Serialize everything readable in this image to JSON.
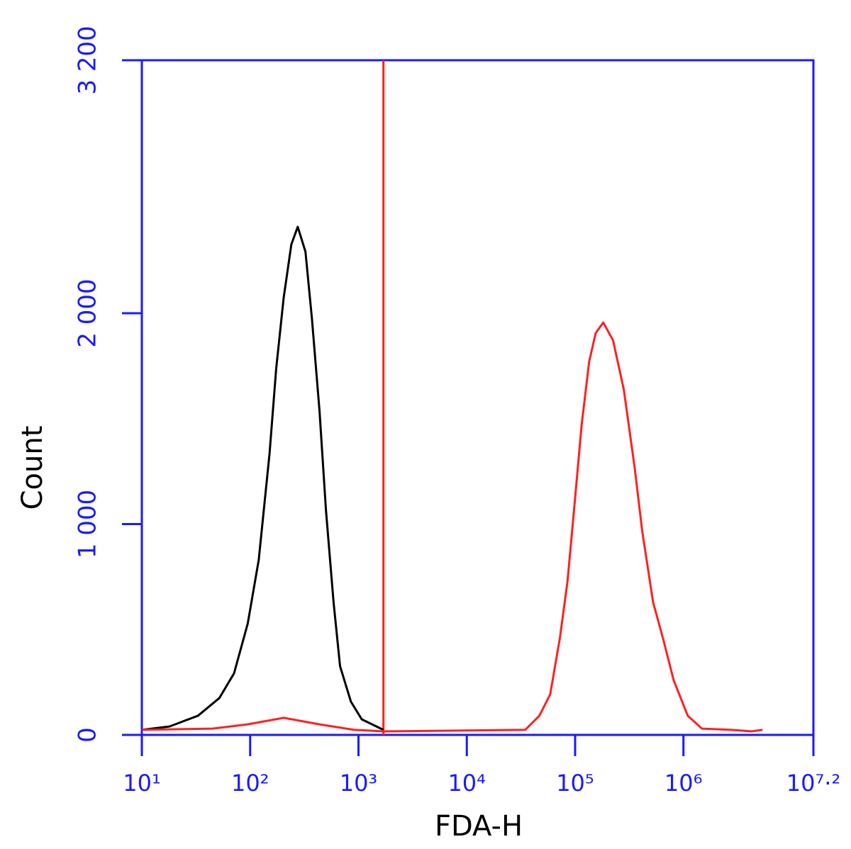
{
  "chart_data": {
    "type": "line",
    "x_scale": "log",
    "xlabel": "FDA-H",
    "ylabel": "Count",
    "xlim": [
      10,
      15848931.92
    ],
    "ylim": [
      0,
      3200
    ],
    "xticks": [
      {
        "value": 10,
        "label": "10¹"
      },
      {
        "value": 100,
        "label": "10²"
      },
      {
        "value": 1000,
        "label": "10³"
      },
      {
        "value": 10000,
        "label": "10⁴"
      },
      {
        "value": 100000,
        "label": "10⁵"
      },
      {
        "value": 1000000,
        "label": "10⁶"
      },
      {
        "value": 15848931.92,
        "label": "10⁷·²"
      }
    ],
    "yticks": [
      0,
      {
        "value": 1000,
        "label": "1 000"
      },
      {
        "value": 2000,
        "label": "2 000"
      },
      {
        "value": 3200,
        "label": "3 200"
      }
    ],
    "axis_color": "#1a1aff",
    "vline": {
      "value": 1700,
      "color": "#ff2020"
    },
    "series": [
      {
        "color": "#000000",
        "x": [
          10,
          18,
          33,
          52,
          71,
          95,
          120,
          151,
          174,
          204,
          240,
          275,
          324,
          372,
          437,
          501,
          589,
          676,
          851,
          1072,
          1700
        ],
        "values": [
          24,
          40,
          91,
          175,
          292,
          528,
          830,
          1334,
          1738,
          2074,
          2326,
          2410,
          2292,
          1973,
          1536,
          1066,
          629,
          326,
          158,
          74,
          24
        ]
      },
      {
        "color": "#ff2020",
        "x": [
          10,
          45,
          95,
          204,
          437,
          912,
          1700,
          34674,
          46774,
          58884,
          72444,
          85114,
          97724,
          114815,
          134896,
          154882,
          181970,
          223872,
          281838,
          354813,
          416869,
          524807,
          645654,
          812831,
          1096478,
          1479108,
          2754229,
          4265795,
          5370318
        ],
        "values": [
          24,
          30,
          50,
          81,
          50,
          24,
          17,
          24,
          91,
          192,
          461,
          729,
          1066,
          1469,
          1771,
          1906,
          1956,
          1872,
          1637,
          1267,
          965,
          629,
          461,
          259,
          91,
          30,
          24,
          17,
          24
        ]
      }
    ]
  }
}
